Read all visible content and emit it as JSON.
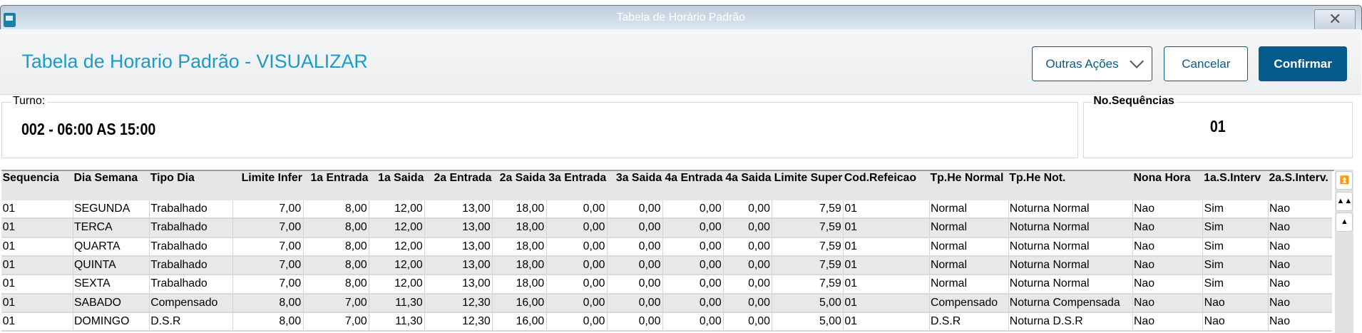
{
  "window": {
    "title": "Tabela de Horário Padrão"
  },
  "header": {
    "title": "Tabela de Horario Padrão - VISUALIZAR",
    "buttons": {
      "other_actions": "Outras Ações",
      "cancel": "Cancelar",
      "confirm": "Confirmar"
    }
  },
  "fields": {
    "turno_label": "Turno:",
    "turno_value": "002 - 06:00 AS 15:00",
    "seq_label": "No.Sequências",
    "seq_value": "01"
  },
  "colors": {
    "accent": "#1a9cc6",
    "primary": "#055a8c"
  },
  "table": {
    "columns": [
      "Sequencia",
      "Dia Semana",
      "Tipo Dia",
      "Limite Infer",
      "1a Entrada",
      "1a Saida",
      "2a Entrada",
      "2a Saida",
      "3a Entrada",
      "3a Saida",
      "4a Entrada",
      "4a Saida",
      "Limite Super",
      "Cod.Refeicao",
      "Tp.He Normal",
      "Tp.He Not.",
      "Nona Hora",
      "1a.S.Interv",
      "2a.S.Interv."
    ],
    "rows": [
      [
        "01",
        "SEGUNDA",
        "Trabalhado",
        "7,00",
        "8,00",
        "12,00",
        "13,00",
        "18,00",
        "0,00",
        "0,00",
        "0,00",
        "0,00",
        "7,59",
        "01",
        "Normal",
        "Noturna Normal",
        "Nao",
        "Sim",
        "Nao"
      ],
      [
        "01",
        "TERCA",
        "Trabalhado",
        "7,00",
        "8,00",
        "12,00",
        "13,00",
        "18,00",
        "0,00",
        "0,00",
        "0,00",
        "0,00",
        "7,59",
        "01",
        "Normal",
        "Noturna Normal",
        "Nao",
        "Sim",
        "Nao"
      ],
      [
        "01",
        "QUARTA",
        "Trabalhado",
        "7,00",
        "8,00",
        "12,00",
        "13,00",
        "18,00",
        "0,00",
        "0,00",
        "0,00",
        "0,00",
        "7,59",
        "01",
        "Normal",
        "Noturna Normal",
        "Nao",
        "Sim",
        "Nao"
      ],
      [
        "01",
        "QUINTA",
        "Trabalhado",
        "7,00",
        "8,00",
        "12,00",
        "13,00",
        "18,00",
        "0,00",
        "0,00",
        "0,00",
        "0,00",
        "7,59",
        "01",
        "Normal",
        "Noturna Normal",
        "Nao",
        "Sim",
        "Nao"
      ],
      [
        "01",
        "SEXTA",
        "Trabalhado",
        "7,00",
        "8,00",
        "12,00",
        "13,00",
        "18,00",
        "0,00",
        "0,00",
        "0,00",
        "0,00",
        "7,59",
        "01",
        "Normal",
        "Noturna Normal",
        "Nao",
        "Sim",
        "Nao"
      ],
      [
        "01",
        "SABADO",
        "Compensado",
        "8,00",
        "7,00",
        "11,30",
        "12,30",
        "16,00",
        "0,00",
        "0,00",
        "0,00",
        "0,00",
        "5,00",
        "01",
        "Compensado",
        "Noturna Compensada",
        "Nao",
        "Nao",
        "Nao"
      ],
      [
        "01",
        "DOMINGO",
        "D.S.R",
        "8,00",
        "7,00",
        "11,30",
        "12,30",
        "16,00",
        "0,00",
        "0,00",
        "0,00",
        "0,00",
        "5,00",
        "01",
        "D.S.R",
        "Noturna D.S.R",
        "Nao",
        "Nao",
        "Nao"
      ]
    ]
  },
  "scrollbar": {
    "icons": [
      "scroll-top-icon",
      "page-up-icon",
      "line-up-icon"
    ]
  }
}
